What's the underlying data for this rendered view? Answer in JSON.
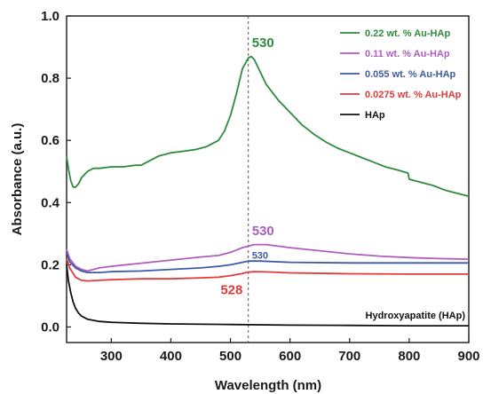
{
  "chart_data": {
    "type": "line",
    "title": "",
    "xlabel": "Wavelength (nm)",
    "ylabel": "Absorbance (a.u.)",
    "xlim": [
      225,
      900
    ],
    "ylim": [
      -0.05,
      1.0
    ],
    "x_ticks": [
      "300",
      "400",
      "500",
      "600",
      "700",
      "800",
      "900"
    ],
    "y_ticks": [
      "0.0",
      "0.2",
      "0.4",
      "0.6",
      "0.8",
      "1.0"
    ],
    "grid": false,
    "legend_position": "top-right",
    "reference_line": {
      "x": 530,
      "style": "dashed"
    },
    "series": [
      {
        "name": "0.22 wt. % Au-HAp",
        "color": "#2e8b3e",
        "points": [
          [
            225,
            0.55
          ],
          [
            228,
            0.51
          ],
          [
            232,
            0.47
          ],
          [
            236,
            0.45
          ],
          [
            240,
            0.45
          ],
          [
            245,
            0.46
          ],
          [
            250,
            0.48
          ],
          [
            255,
            0.49
          ],
          [
            260,
            0.5
          ],
          [
            270,
            0.51
          ],
          [
            280,
            0.51
          ],
          [
            300,
            0.515
          ],
          [
            320,
            0.515
          ],
          [
            340,
            0.52
          ],
          [
            350,
            0.52
          ],
          [
            360,
            0.53
          ],
          [
            380,
            0.55
          ],
          [
            400,
            0.56
          ],
          [
            420,
            0.565
          ],
          [
            440,
            0.57
          ],
          [
            460,
            0.58
          ],
          [
            480,
            0.6
          ],
          [
            490,
            0.63
          ],
          [
            500,
            0.68
          ],
          [
            510,
            0.75
          ],
          [
            520,
            0.83
          ],
          [
            530,
            0.865
          ],
          [
            535,
            0.87
          ],
          [
            540,
            0.86
          ],
          [
            550,
            0.82
          ],
          [
            560,
            0.78
          ],
          [
            580,
            0.73
          ],
          [
            600,
            0.69
          ],
          [
            620,
            0.65
          ],
          [
            640,
            0.62
          ],
          [
            660,
            0.595
          ],
          [
            680,
            0.575
          ],
          [
            700,
            0.56
          ],
          [
            720,
            0.545
          ],
          [
            740,
            0.53
          ],
          [
            760,
            0.515
          ],
          [
            780,
            0.505
          ],
          [
            798,
            0.495
          ],
          [
            800,
            0.475
          ],
          [
            820,
            0.465
          ],
          [
            840,
            0.455
          ],
          [
            860,
            0.44
          ],
          [
            880,
            0.43
          ],
          [
            900,
            0.42
          ]
        ]
      },
      {
        "name": "0.11 wt. % Au-HAp",
        "color": "#b05cc0",
        "points": [
          [
            225,
            0.25
          ],
          [
            230,
            0.22
          ],
          [
            240,
            0.195
          ],
          [
            250,
            0.185
          ],
          [
            260,
            0.18
          ],
          [
            280,
            0.19
          ],
          [
            300,
            0.195
          ],
          [
            350,
            0.205
          ],
          [
            400,
            0.215
          ],
          [
            450,
            0.225
          ],
          [
            480,
            0.23
          ],
          [
            500,
            0.24
          ],
          [
            520,
            0.255
          ],
          [
            540,
            0.265
          ],
          [
            560,
            0.265
          ],
          [
            600,
            0.255
          ],
          [
            650,
            0.245
          ],
          [
            700,
            0.235
          ],
          [
            750,
            0.228
          ],
          [
            800,
            0.223
          ],
          [
            850,
            0.22
          ],
          [
            900,
            0.218
          ]
        ]
      },
      {
        "name": "0.055 wt. % Au-HAp",
        "color": "#3c5aa8",
        "points": [
          [
            225,
            0.24
          ],
          [
            230,
            0.21
          ],
          [
            240,
            0.19
          ],
          [
            250,
            0.18
          ],
          [
            260,
            0.175
          ],
          [
            280,
            0.175
          ],
          [
            300,
            0.178
          ],
          [
            350,
            0.18
          ],
          [
            400,
            0.185
          ],
          [
            450,
            0.19
          ],
          [
            480,
            0.195
          ],
          [
            500,
            0.2
          ],
          [
            520,
            0.208
          ],
          [
            530,
            0.212
          ],
          [
            550,
            0.212
          ],
          [
            600,
            0.208
          ],
          [
            700,
            0.206
          ],
          [
            800,
            0.206
          ],
          [
            900,
            0.206
          ]
        ]
      },
      {
        "name": "0.0275 wt. % Au-HAp",
        "color": "#e03a3a",
        "points": [
          [
            225,
            0.22
          ],
          [
            230,
            0.19
          ],
          [
            240,
            0.16
          ],
          [
            250,
            0.15
          ],
          [
            260,
            0.148
          ],
          [
            280,
            0.15
          ],
          [
            300,
            0.152
          ],
          [
            350,
            0.155
          ],
          [
            400,
            0.155
          ],
          [
            450,
            0.158
          ],
          [
            480,
            0.16
          ],
          [
            500,
            0.165
          ],
          [
            520,
            0.172
          ],
          [
            528,
            0.176
          ],
          [
            540,
            0.178
          ],
          [
            560,
            0.177
          ],
          [
            600,
            0.174
          ],
          [
            700,
            0.171
          ],
          [
            800,
            0.17
          ],
          [
            900,
            0.17
          ]
        ]
      },
      {
        "name": "HAp",
        "color": "#111111",
        "points": [
          [
            225,
            0.2
          ],
          [
            228,
            0.15
          ],
          [
            232,
            0.11
          ],
          [
            236,
            0.08
          ],
          [
            240,
            0.06
          ],
          [
            245,
            0.045
          ],
          [
            250,
            0.035
          ],
          [
            260,
            0.025
          ],
          [
            280,
            0.018
          ],
          [
            300,
            0.015
          ],
          [
            350,
            0.012
          ],
          [
            400,
            0.01
          ],
          [
            500,
            0.008
          ],
          [
            600,
            0.006
          ],
          [
            700,
            0.005
          ],
          [
            800,
            0.004
          ],
          [
            900,
            0.004
          ]
        ]
      }
    ],
    "annotations": [
      {
        "text": "530",
        "x": 530,
        "y": 0.9,
        "color": "#2e8b3e",
        "size": "large"
      },
      {
        "text": "530",
        "x": 530,
        "y": 0.295,
        "color": "#b05cc0",
        "size": "large"
      },
      {
        "text": "530",
        "x": 530,
        "y": 0.22,
        "color": "#3c5aa8",
        "size": "small"
      },
      {
        "text": "528",
        "x": 528,
        "y": 0.105,
        "color": "#e03a3a",
        "size": "large"
      }
    ],
    "inner_label": "Hydroxyapatite (HAp)"
  }
}
